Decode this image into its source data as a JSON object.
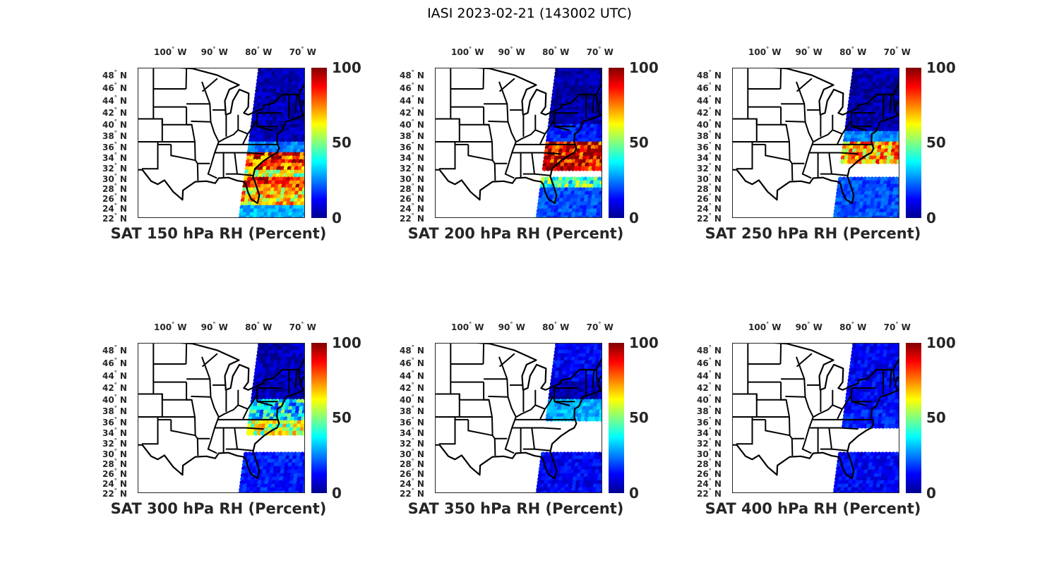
{
  "figure_title": "IASI 2023-02-21 (143002 UTC)",
  "lon_ticks": [
    {
      "value": 100,
      "label": "100",
      "hemi": "W"
    },
    {
      "value": 90,
      "label": "90",
      "hemi": "W"
    },
    {
      "value": 80,
      "label": "80",
      "hemi": "W"
    },
    {
      "value": 70,
      "label": "70",
      "hemi": "W"
    }
  ],
  "lat_ticks": [
    {
      "value": 48,
      "label": "48",
      "hemi": "N"
    },
    {
      "value": 46,
      "label": "46",
      "hemi": "N"
    },
    {
      "value": 44,
      "label": "44",
      "hemi": "N"
    },
    {
      "value": 42,
      "label": "42",
      "hemi": "N"
    },
    {
      "value": 40,
      "label": "40",
      "hemi": "N"
    },
    {
      "value": 38,
      "label": "38",
      "hemi": "N"
    },
    {
      "value": 36,
      "label": "36",
      "hemi": "N"
    },
    {
      "value": 34,
      "label": "34",
      "hemi": "N"
    },
    {
      "value": 32,
      "label": "32",
      "hemi": "N"
    },
    {
      "value": 30,
      "label": "30",
      "hemi": "N"
    },
    {
      "value": 28,
      "label": "28",
      "hemi": "N"
    },
    {
      "value": 26,
      "label": "26",
      "hemi": "N"
    },
    {
      "value": 24,
      "label": "24",
      "hemi": "N"
    },
    {
      "value": 22,
      "label": "22",
      "hemi": "N"
    }
  ],
  "degree_symbol": "°",
  "colorbar": {
    "labels": [
      "100",
      "50",
      "0"
    ],
    "min": 0,
    "max": 100,
    "colormap": "jet"
  },
  "chart_data": [
    {
      "type": "scatter-map",
      "title": "SAT 150 hPa RH (Percent)",
      "level_hpa": 150,
      "bands": [
        {
          "lat": [
            37,
            49.5
          ],
          "rh": 5
        },
        {
          "lat": [
            35,
            37
          ],
          "rh": 25
        },
        {
          "lat": [
            32,
            35
          ],
          "rh": 82
        },
        {
          "lat": [
            30,
            32
          ],
          "rh": 55
        },
        {
          "lat": [
            28,
            30
          ],
          "rh": 85
        },
        {
          "lat": [
            25,
            28
          ],
          "rh": 65
        },
        {
          "lat": [
            21.8,
            25
          ],
          "rh": 30
        }
      ]
    },
    {
      "type": "scatter-map",
      "title": "SAT 200 hPa RH (Percent)",
      "level_hpa": 200,
      "bands": [
        {
          "lat": [
            40,
            49.5
          ],
          "rh": 4
        },
        {
          "lat": [
            37,
            40
          ],
          "rh": 15
        },
        {
          "lat": [
            32,
            37
          ],
          "rh": 90
        },
        {
          "lat": [
            28,
            30
          ],
          "rh": 45
        },
        {
          "lat": [
            21.8,
            28
          ],
          "rh": 20
        }
      ]
    },
    {
      "type": "scatter-map",
      "title": "SAT 250 hPa RH (Percent)",
      "level_hpa": 250,
      "bands": [
        {
          "lat": [
            39,
            49.5
          ],
          "rh": 4
        },
        {
          "lat": [
            37,
            39
          ],
          "rh": 25
        },
        {
          "lat": [
            33,
            37
          ],
          "rh": 70
        },
        {
          "lat": [
            21.8,
            30
          ],
          "rh": 20
        }
      ]
    },
    {
      "type": "scatter-map",
      "title": "SAT 300 hPa RH (Percent)",
      "level_hpa": 300,
      "bands": [
        {
          "lat": [
            40,
            49.5
          ],
          "rh": 6
        },
        {
          "lat": [
            36,
            40
          ],
          "rh": 35
        },
        {
          "lat": [
            34,
            36
          ],
          "rh": 55
        },
        {
          "lat": [
            21.8,
            30
          ],
          "rh": 15
        }
      ]
    },
    {
      "type": "scatter-map",
      "title": "SAT 350 hPa RH (Percent)",
      "level_hpa": 350,
      "bands": [
        {
          "lat": [
            43,
            49.5
          ],
          "rh": 12
        },
        {
          "lat": [
            40,
            43
          ],
          "rh": 5
        },
        {
          "lat": [
            36,
            40
          ],
          "rh": 30
        },
        {
          "lat": [
            21.8,
            30
          ],
          "rh": 12
        }
      ]
    },
    {
      "type": "scatter-map",
      "title": "SAT 400 hPa RH (Percent)",
      "level_hpa": 400,
      "bands": [
        {
          "lat": [
            38,
            49.5
          ],
          "rh": 12
        },
        {
          "lat": [
            35,
            38
          ],
          "rh": 15
        },
        {
          "lat": [
            21.8,
            30
          ],
          "rh": 12
        }
      ]
    }
  ]
}
